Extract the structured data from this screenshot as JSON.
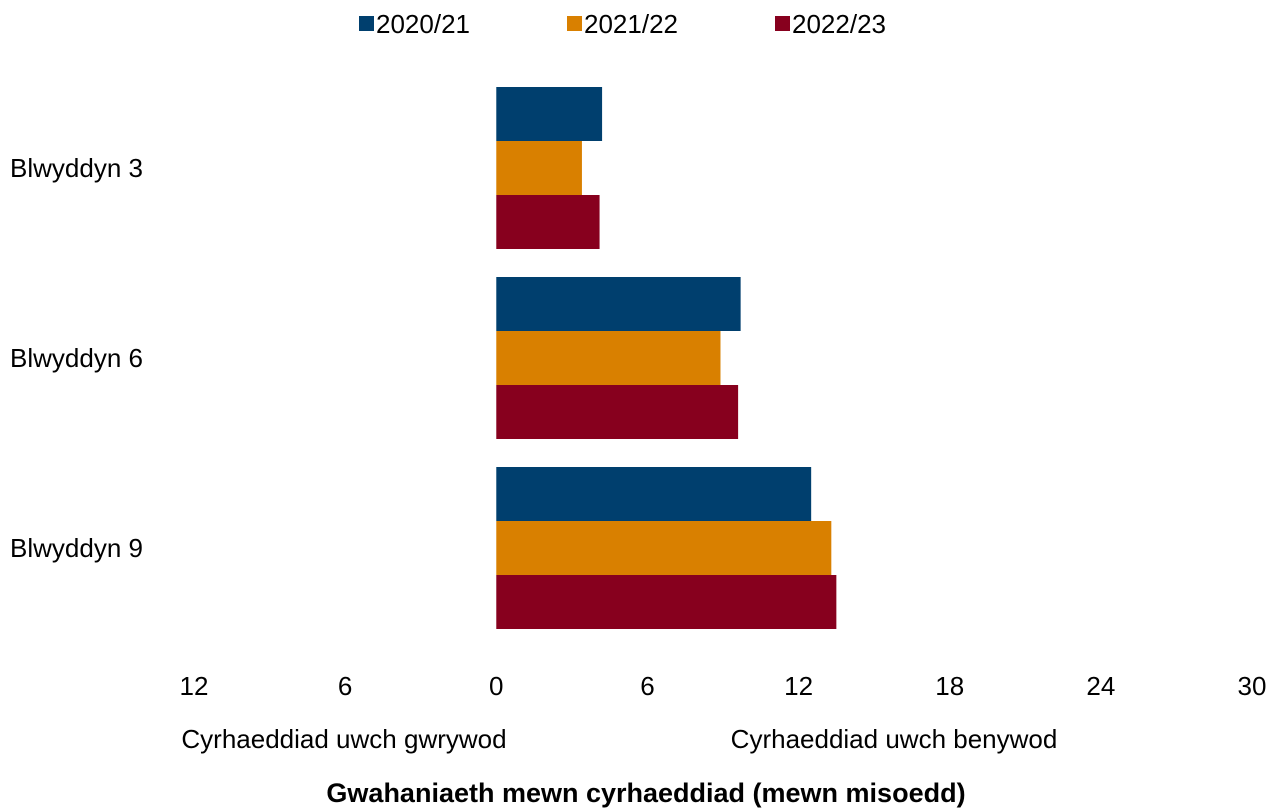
{
  "chart_data": {
    "type": "bar",
    "orientation": "horizontal",
    "categories": [
      "Blwyddyn 3",
      "Blwyddyn 6",
      "Blwyddyn 9"
    ],
    "series": [
      {
        "name": "2020/21",
        "color": "#003f6e",
        "values": [
          4.2,
          9.7,
          12.5
        ]
      },
      {
        "name": "2021/22",
        "color": "#d98000",
        "values": [
          3.4,
          8.9,
          13.3
        ]
      },
      {
        "name": "2022/23",
        "color": "#87001e",
        "values": [
          4.1,
          9.6,
          13.5
        ]
      }
    ],
    "xlim": [
      -12,
      30
    ],
    "xticks": [
      -12,
      -6,
      0,
      6,
      12,
      18,
      24,
      30
    ],
    "xtick_labels": [
      "12",
      "6",
      "0",
      "6",
      "12",
      "18",
      "24",
      "30"
    ],
    "side_labels": {
      "left": "Cyrhaeddiad uwch gwrywod",
      "right": "Cyrhaeddiad uwch benywod"
    },
    "xlabel": "Gwahaniaeth mewn cyrhaeddiad (mewn misoedd)",
    "legend_position": "top",
    "grid": false
  }
}
